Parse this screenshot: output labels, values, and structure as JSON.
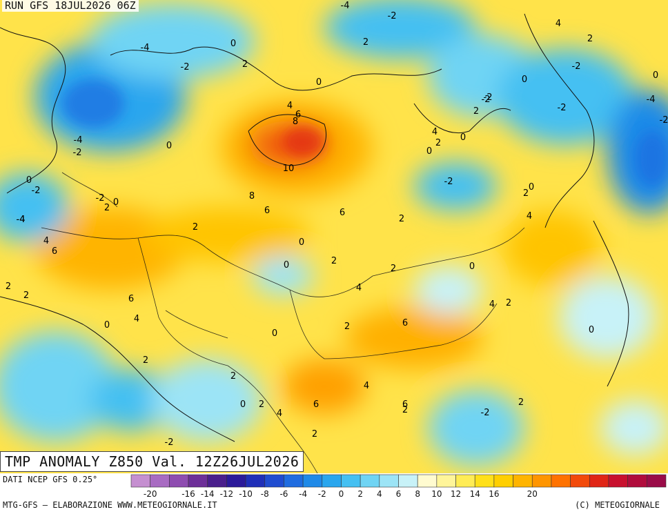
{
  "header": {
    "run_label": "RUN GFS 18JUL2026 06Z"
  },
  "title": {
    "text": "TMP ANOMALY Z850 Val. 12Z26JUL2026"
  },
  "footer": {
    "data_source": "DATI NCEP GFS 0.25°",
    "credits": "MTG-GFS — ELABORAZIONE WWW.METEOGIORNALE.IT",
    "copyright": "(C) METEOGIORNALE"
  },
  "colorbar": {
    "min": -22,
    "step": 2,
    "colors": [
      "#c58fd0",
      "#a86bc2",
      "#8e4cb0",
      "#6d2f98",
      "#4a1f8c",
      "#2b1a9a",
      "#1f2fb8",
      "#1f4cd0",
      "#1f6ce0",
      "#1f8ae8",
      "#29a6ee",
      "#45c0f2",
      "#6fd4f4",
      "#9ce4f6",
      "#c8f2f8",
      "#fffbd0",
      "#fff59a",
      "#ffec55",
      "#ffe01a",
      "#ffcf00",
      "#ffb400",
      "#ff9500",
      "#ff7200",
      "#f24a0a",
      "#e02516",
      "#c8102e",
      "#b00c3c",
      "#9a0c48"
    ],
    "tick_labels": [
      "-20",
      "-16",
      "-14",
      "-12",
      "-10",
      "-8",
      "-6",
      "-4",
      "-2",
      "0",
      "2",
      "4",
      "6",
      "8",
      "10",
      "12",
      "14",
      "16",
      "20"
    ],
    "tick_values": [
      -20,
      -16,
      -14,
      -12,
      -10,
      -8,
      -6,
      -4,
      -2,
      0,
      2,
      4,
      6,
      8,
      10,
      12,
      14,
      16,
      20
    ]
  },
  "map_labels": {
    "texts": [
      "-4",
      "-2",
      "4",
      "2",
      "0",
      "-4",
      "2",
      "0",
      "-2",
      "0",
      "2",
      "-2",
      "-2",
      "0",
      "-4",
      "0",
      "-2",
      "2",
      "-4",
      "-2",
      "4",
      "6",
      "8",
      "4",
      "0",
      "2",
      "-2",
      "0",
      "-2",
      "2",
      "-2",
      "0",
      "-4",
      "8",
      "2",
      "0",
      "-2",
      "-2",
      "6",
      "2",
      "0",
      "-4",
      "6",
      "4",
      "4",
      "6",
      "2",
      "0",
      "2",
      "0",
      "4",
      "6",
      "2",
      "0",
      "4",
      "2",
      "2",
      "6",
      "4",
      "2",
      "0",
      "0",
      "2",
      "6",
      "0",
      "2",
      "2",
      "4",
      "2",
      "0",
      "2",
      "4",
      "6",
      "-2",
      "2",
      "2",
      "-2",
      "10"
    ]
  }
}
